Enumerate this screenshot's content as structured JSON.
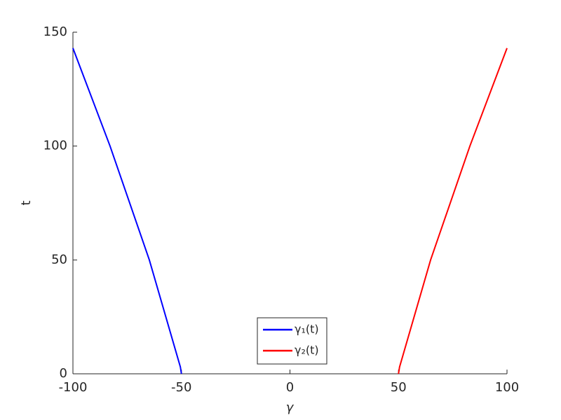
{
  "chart_data": {
    "type": "line",
    "xlabel": "γ",
    "ylabel": "t",
    "xlim": [
      -100,
      100
    ],
    "xticks": [
      -100,
      -50,
      0,
      50,
      100
    ],
    "ylim": [
      0,
      150
    ],
    "yticks": [
      0,
      50,
      100,
      150
    ],
    "legend": "bottom",
    "series": [
      {
        "name": "γ₁(t)",
        "color": "#0000ff",
        "x": [
          -50,
          -50.5,
          -64.8,
          -82.9,
          -100
        ],
        "values": [
          0,
          3,
          50,
          100,
          143
        ]
      },
      {
        "name": "γ₂(t)",
        "color": "#ff0000",
        "x": [
          50,
          50.5,
          64.8,
          82.9,
          100
        ],
        "values": [
          0,
          3,
          50,
          100,
          143
        ]
      }
    ]
  }
}
